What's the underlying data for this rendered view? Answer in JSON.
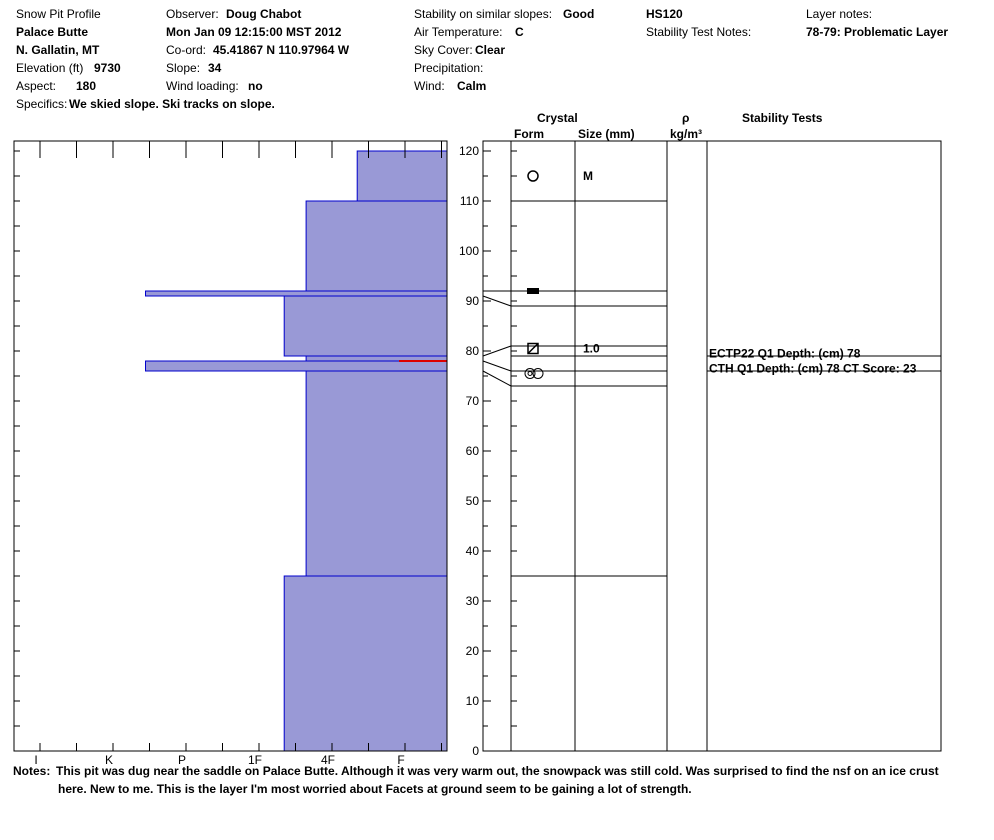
{
  "header": {
    "profile_title": "Snow Pit Profile",
    "location_name": "Palace Butte",
    "region": "N. Gallatin, MT",
    "elevation_label": "Elevation (ft)",
    "elevation_value": "9730",
    "aspect_label": "Aspect:",
    "aspect_value": "180",
    "specifics_label": "Specifics:",
    "specifics_value": "We skied slope. Ski tracks on slope.",
    "observer_label": "Observer:",
    "observer_value": "Doug Chabot",
    "datetime": "Mon Jan 09 12:15:00 MST 2012",
    "coord_label": "Co-ord:",
    "coord_value": "45.41867 N 110.97964 W",
    "slope_label": "Slope:",
    "slope_value": "34",
    "wind_loading_label": "Wind loading:",
    "wind_loading_value": "no",
    "stability_label": "Stability on similar slopes:",
    "stability_value": "Good",
    "air_temp_label": "Air Temperature:",
    "air_temp_value": "C",
    "sky_label": "Sky Cover:",
    "sky_value": "Clear",
    "precip_label": "Precipitation:",
    "precip_value": "",
    "wind_label": "Wind:",
    "wind_value": "Calm",
    "hs": "HS120",
    "stability_test_notes_label": "Stability Test Notes:",
    "layer_notes_label": "Layer notes:",
    "layer_notes_value": "78-79: Problematic Layer"
  },
  "columns": {
    "crystal": "Crystal",
    "form": "Form",
    "size": "Size (mm)",
    "rho": "ρ",
    "density_unit": "kg/m³",
    "stability_tests": "Stability Tests"
  },
  "chart_data": {
    "type": "bar",
    "ylabel": "",
    "ylim": [
      0,
      120
    ],
    "y_ticks": [
      0,
      10,
      20,
      30,
      40,
      50,
      60,
      70,
      80,
      90,
      100,
      110,
      120
    ],
    "x_ticks": [
      "I",
      "K",
      "P",
      "1F",
      "4F",
      "F"
    ],
    "x_tick_values": [
      6,
      5,
      4,
      3,
      2,
      1
    ],
    "hardness_layers": [
      {
        "bottom": 0,
        "top": 35,
        "hardness": 2.6
      },
      {
        "bottom": 35,
        "top": 76,
        "hardness": 2.3
      },
      {
        "bottom": 76,
        "top": 78,
        "hardness": 4.5
      },
      {
        "bottom": 78,
        "top": 79,
        "hardness": 2.3
      },
      {
        "bottom": 79,
        "top": 91,
        "hardness": 2.6
      },
      {
        "bottom": 91,
        "top": 92,
        "hardness": 4.5
      },
      {
        "bottom": 92,
        "top": 110,
        "hardness": 2.3
      },
      {
        "bottom": 110,
        "top": 120,
        "hardness": 1.6
      }
    ],
    "problem_layer_depth": 78,
    "layer_boundaries": [
      35,
      73,
      76,
      79,
      81,
      89,
      92,
      110
    ],
    "crystals": [
      {
        "y": 115,
        "form": "rounds",
        "size": "M"
      },
      {
        "y": 92,
        "form": "ice-crust",
        "size": ""
      },
      {
        "y": 80.5,
        "form": "faceted-rounded",
        "size": "1.0"
      },
      {
        "y": 75.5,
        "form": "graupel-pair",
        "size": ""
      }
    ],
    "stability_tests": [
      {
        "text": "ECTP22 Q1 Depth: (cm) 78",
        "y": 79.5
      },
      {
        "text": "CTH Q1 Depth: (cm) 78 CT Score: 23",
        "y": 76.5
      }
    ],
    "colors": {
      "fill": "#9999d6",
      "edge": "#0000cc",
      "problem": "#dd0000"
    }
  },
  "notes": {
    "label": "Notes:",
    "line1": "This pit was dug near the saddle on Palace Butte.  Although it was very warm out, the snowpack was still cold.  Was surprised to find the nsf on an ice crust",
    "line2": "here.  New to me. This is the layer I'm most worried about Facets at ground seem to be gaining a lot of strength."
  }
}
